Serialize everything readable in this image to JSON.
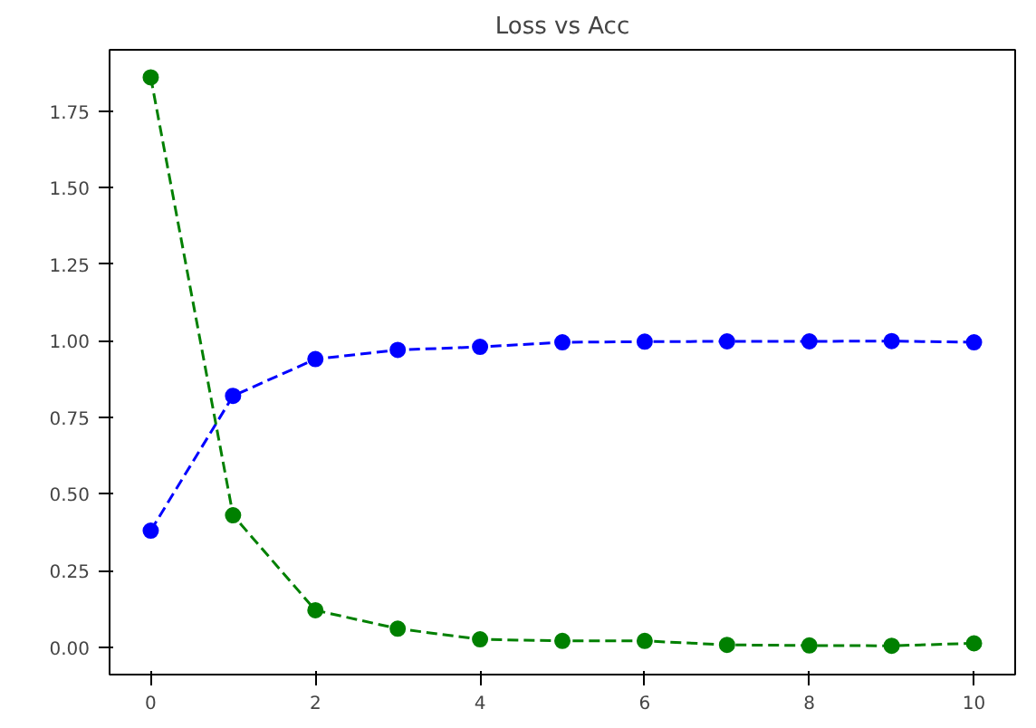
{
  "chart_data": {
    "type": "line",
    "title": "Loss vs Acc",
    "x": [
      0,
      1,
      2,
      3,
      4,
      5,
      6,
      7,
      8,
      9,
      10
    ],
    "series": [
      {
        "color": "#0000ff",
        "values": [
          0.38,
          0.82,
          0.94,
          0.97,
          0.98,
          0.995,
          0.997,
          0.998,
          0.998,
          0.999,
          0.995
        ]
      },
      {
        "color": "#008000",
        "values": [
          1.86,
          0.43,
          0.12,
          0.06,
          0.025,
          0.02,
          0.02,
          0.007,
          0.005,
          0.004,
          0.012
        ]
      }
    ],
    "xlim": [
      -0.5,
      10.5
    ],
    "ylim": [
      -0.09,
      1.95
    ],
    "xticks": [
      0,
      2,
      4,
      6,
      8,
      10
    ],
    "yticks": [
      {
        "value": 0,
        "label": "0.00"
      },
      {
        "value": 0.25,
        "label": "0.25"
      },
      {
        "value": 0.5,
        "label": "0.50"
      },
      {
        "value": 0.75,
        "label": "0.75"
      },
      {
        "value": 1,
        "label": "1.00"
      },
      {
        "value": 1.25,
        "label": "1.25"
      },
      {
        "value": 1.5,
        "label": "1.50"
      },
      {
        "value": 1.75,
        "label": "1.75"
      }
    ],
    "marker": "circle",
    "line_style": "dashed",
    "grid": false
  }
}
